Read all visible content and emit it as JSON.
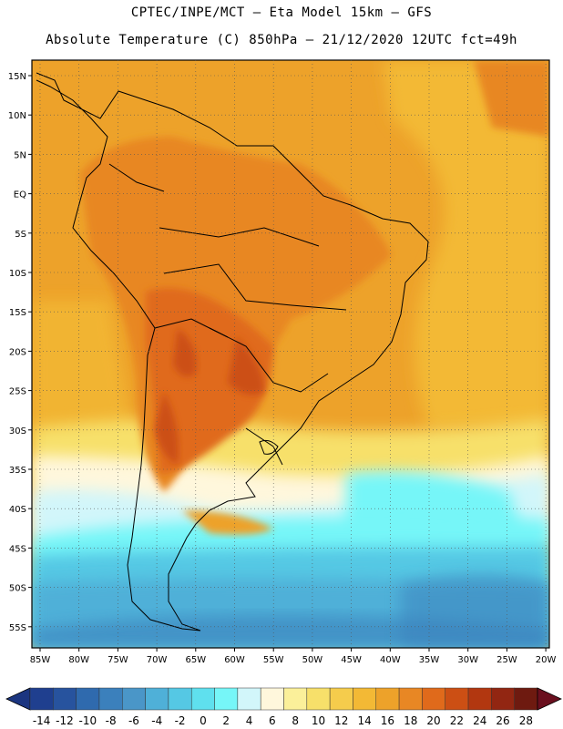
{
  "title_line1": "CPTEC/INPE/MCT —  Eta Model 15km — GFS",
  "title_line2": "Absolute Temperature (C) 850hPa — 21/12/2020 12UTC fct=49h",
  "lat_labels": [
    "15N",
    "10N",
    "5N",
    "EQ",
    "5S",
    "10S",
    "15S",
    "20S",
    "25S",
    "30S",
    "35S",
    "40S",
    "45S",
    "50S",
    "55S"
  ],
  "lon_labels": [
    "85W",
    "80W",
    "75W",
    "70W",
    "65W",
    "60W",
    "55W",
    "50W",
    "45W",
    "40W",
    "35W",
    "30W",
    "25W",
    "20W"
  ],
  "colorbar": {
    "tick_labels": [
      "-14",
      "-12",
      "-10",
      "-8",
      "-6",
      "-4",
      "-2",
      "0",
      "2",
      "4",
      "6",
      "8",
      "10",
      "12",
      "14",
      "16",
      "18",
      "20",
      "22",
      "24",
      "26",
      "28"
    ],
    "colors": [
      "#1f3f8f",
      "#27539e",
      "#2f6aae",
      "#3b80bc",
      "#4a96c8",
      "#4fb0d8",
      "#55c8e4",
      "#5fe0ee",
      "#76f6f8",
      "#d2f6fa",
      "#fff7dc",
      "#fbf09a",
      "#f7e06a",
      "#f5cc4c",
      "#f3b935",
      "#eda22a",
      "#e88724",
      "#e06a1b",
      "#cc4f14",
      "#b23710",
      "#922612",
      "#6e1a10"
    ]
  },
  "field_colors": {
    "ocean_warm": "#eda22a",
    "ocean_warmer": "#f3b935",
    "land_hot": "#e88724",
    "land_hotter": "#e06a1b",
    "cold_1": "#d2f6fa",
    "cold_2": "#76f6f8",
    "cold_3": "#55c8e4",
    "cold_4": "#4fb0d8",
    "cold_5": "#3b80bc",
    "cream": "#fff7dc",
    "yellow": "#f7e06a",
    "outline": "#000000"
  }
}
